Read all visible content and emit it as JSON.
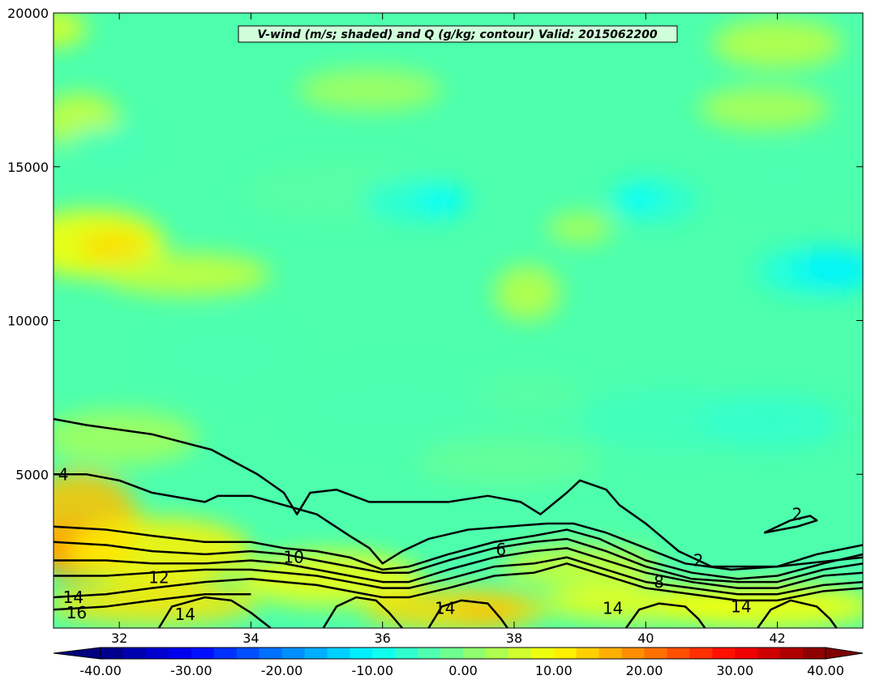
{
  "chart_data": {
    "type": "heatmap",
    "title": "V-wind (m/s; shaded) and Q (g/kg; contour) Valid: 2015062200",
    "xlim": [
      31.0,
      43.3
    ],
    "ylim": [
      0,
      20000
    ],
    "x_ticks": [
      32,
      34,
      36,
      38,
      40,
      42
    ],
    "x_tick_labels": [
      "32",
      "34",
      "36",
      "38",
      "40",
      "42"
    ],
    "y_ticks": [
      5000,
      10000,
      15000,
      20000
    ],
    "y_tick_labels": [
      "5000",
      "10000",
      "15000",
      "20000"
    ],
    "colorbar": {
      "min": -40,
      "max": 40,
      "step": 2.5,
      "extend": "both",
      "ticks": [
        -40,
        -30,
        -20,
        -10,
        0,
        10,
        20,
        30,
        40
      ],
      "tick_labels": [
        "-40.00",
        "-30.00",
        "-20.00",
        "-10.00",
        "0.00",
        "10.00",
        "20.00",
        "30.00",
        "40.00"
      ],
      "colormap": "jet"
    },
    "contours": [
      {
        "level": 2,
        "points": [
          [
            31.0,
            6800
          ],
          [
            31.5,
            6600
          ],
          [
            32.5,
            6300
          ],
          [
            33.4,
            5800
          ],
          [
            34.1,
            5000
          ],
          [
            34.5,
            4400
          ],
          [
            34.7,
            3700
          ],
          [
            34.9,
            4400
          ],
          [
            35.3,
            4500
          ],
          [
            35.8,
            4100
          ],
          [
            36.3,
            4100
          ],
          [
            37.0,
            4100
          ],
          [
            37.6,
            4300
          ],
          [
            38.1,
            4100
          ],
          [
            38.4,
            3700
          ],
          [
            38.8,
            4400
          ],
          [
            39.0,
            4800
          ],
          [
            39.4,
            4500
          ],
          [
            39.6,
            4000
          ],
          [
            40.0,
            3400
          ],
          [
            40.5,
            2500
          ],
          [
            41.0,
            2000
          ],
          [
            42.0,
            2000
          ],
          [
            43.3,
            2300
          ]
        ]
      },
      {
        "level": 2,
        "points": [
          [
            41.8,
            3100
          ],
          [
            42.2,
            3500
          ],
          [
            42.5,
            3650
          ],
          [
            42.6,
            3500
          ],
          [
            42.3,
            3300
          ],
          [
            41.8,
            3100
          ]
        ]
      },
      {
        "level": 4,
        "points": [
          [
            31.0,
            5000
          ],
          [
            31.5,
            5000
          ],
          [
            32.0,
            4800
          ],
          [
            32.5,
            4400
          ],
          [
            33.3,
            4100
          ],
          [
            33.5,
            4300
          ],
          [
            34.0,
            4300
          ],
          [
            34.5,
            4000
          ],
          [
            35.0,
            3700
          ],
          [
            35.5,
            3000
          ],
          [
            35.8,
            2600
          ],
          [
            36.0,
            2100
          ],
          [
            36.3,
            2500
          ],
          [
            36.7,
            2900
          ],
          [
            37.3,
            3200
          ],
          [
            37.9,
            3300
          ],
          [
            38.5,
            3400
          ],
          [
            38.9,
            3400
          ],
          [
            39.4,
            3100
          ],
          [
            40.0,
            2600
          ],
          [
            40.6,
            2100
          ],
          [
            41.3,
            1900
          ],
          [
            42.0,
            2000
          ],
          [
            42.6,
            2400
          ],
          [
            43.3,
            2700
          ]
        ]
      },
      {
        "level": 6,
        "points": [
          [
            31.0,
            3300
          ],
          [
            31.8,
            3200
          ],
          [
            32.5,
            3000
          ],
          [
            33.3,
            2800
          ],
          [
            34.0,
            2800
          ],
          [
            34.5,
            2600
          ],
          [
            35.0,
            2500
          ],
          [
            35.5,
            2300
          ],
          [
            36.0,
            1900
          ],
          [
            36.4,
            2000
          ],
          [
            37.0,
            2400
          ],
          [
            37.7,
            2800
          ],
          [
            38.3,
            3000
          ],
          [
            38.8,
            3200
          ],
          [
            39.3,
            2900
          ],
          [
            40.0,
            2200
          ],
          [
            40.7,
            1800
          ],
          [
            41.4,
            1600
          ],
          [
            42.0,
            1700
          ],
          [
            42.7,
            2100
          ],
          [
            43.3,
            2400
          ]
        ]
      },
      {
        "level": 8,
        "points": [
          [
            31.0,
            2800
          ],
          [
            31.8,
            2700
          ],
          [
            32.5,
            2500
          ],
          [
            33.3,
            2400
          ],
          [
            34.0,
            2500
          ],
          [
            34.5,
            2400
          ],
          [
            35.0,
            2200
          ],
          [
            35.5,
            2000
          ],
          [
            36.0,
            1800
          ],
          [
            36.4,
            1800
          ],
          [
            37.0,
            2200
          ],
          [
            37.7,
            2600
          ],
          [
            38.3,
            2800
          ],
          [
            38.8,
            2900
          ],
          [
            39.4,
            2500
          ],
          [
            40.0,
            2000
          ],
          [
            40.7,
            1600
          ],
          [
            41.4,
            1500
          ],
          [
            42.0,
            1500
          ],
          [
            42.7,
            1900
          ],
          [
            43.3,
            2100
          ]
        ]
      },
      {
        "level": 10,
        "points": [
          [
            31.0,
            2200
          ],
          [
            31.8,
            2200
          ],
          [
            32.5,
            2100
          ],
          [
            33.3,
            2100
          ],
          [
            34.0,
            2200
          ],
          [
            34.5,
            2100
          ],
          [
            35.0,
            1900
          ],
          [
            35.5,
            1700
          ],
          [
            36.0,
            1500
          ],
          [
            36.4,
            1500
          ],
          [
            37.0,
            1900
          ],
          [
            37.7,
            2300
          ],
          [
            38.3,
            2500
          ],
          [
            38.8,
            2600
          ],
          [
            39.4,
            2200
          ],
          [
            40.0,
            1800
          ],
          [
            40.7,
            1500
          ],
          [
            41.4,
            1300
          ],
          [
            42.0,
            1300
          ],
          [
            42.7,
            1700
          ],
          [
            43.3,
            1800
          ]
        ]
      },
      {
        "level": 12,
        "points": [
          [
            31.0,
            1700
          ],
          [
            31.8,
            1700
          ],
          [
            32.5,
            1800
          ],
          [
            33.3,
            1900
          ],
          [
            34.0,
            1900
          ],
          [
            34.5,
            1800
          ],
          [
            35.0,
            1700
          ],
          [
            35.5,
            1500
          ],
          [
            36.0,
            1300
          ],
          [
            36.4,
            1300
          ],
          [
            37.0,
            1600
          ],
          [
            37.7,
            2000
          ],
          [
            38.3,
            2100
          ],
          [
            38.8,
            2300
          ],
          [
            39.4,
            1900
          ],
          [
            40.0,
            1500
          ],
          [
            40.7,
            1300
          ],
          [
            41.4,
            1100
          ],
          [
            42.0,
            1100
          ],
          [
            42.7,
            1400
          ],
          [
            43.3,
            1500
          ]
        ]
      },
      {
        "level": 14,
        "points": [
          [
            31.0,
            1000
          ],
          [
            31.8,
            1100
          ],
          [
            32.5,
            1300
          ],
          [
            33.3,
            1500
          ],
          [
            34.0,
            1600
          ],
          [
            34.5,
            1500
          ],
          [
            35.0,
            1400
          ],
          [
            35.5,
            1200
          ],
          [
            36.0,
            1000
          ],
          [
            36.4,
            1000
          ],
          [
            37.0,
            1300
          ],
          [
            37.7,
            1700
          ],
          [
            38.3,
            1800
          ],
          [
            38.8,
            2100
          ],
          [
            39.4,
            1700
          ],
          [
            40.0,
            1300
          ],
          [
            40.7,
            1100
          ],
          [
            41.4,
            900
          ],
          [
            42.0,
            900
          ],
          [
            42.7,
            1200
          ],
          [
            43.3,
            1300
          ]
        ]
      },
      {
        "level": 14,
        "points": [
          [
            32.6,
            0
          ],
          [
            32.8,
            700
          ],
          [
            33.3,
            1000
          ],
          [
            33.7,
            900
          ],
          [
            34.0,
            500
          ],
          [
            34.3,
            0
          ]
        ]
      },
      {
        "level": 14,
        "points": [
          [
            35.1,
            0
          ],
          [
            35.3,
            700
          ],
          [
            35.6,
            1000
          ],
          [
            35.9,
            900
          ],
          [
            36.1,
            500
          ],
          [
            36.3,
            0
          ]
        ]
      },
      {
        "level": 14,
        "points": [
          [
            36.7,
            0
          ],
          [
            36.9,
            700
          ],
          [
            37.2,
            900
          ],
          [
            37.6,
            800
          ],
          [
            37.8,
            300
          ],
          [
            37.9,
            0
          ]
        ]
      },
      {
        "level": 14,
        "points": [
          [
            39.7,
            0
          ],
          [
            39.9,
            600
          ],
          [
            40.2,
            800
          ],
          [
            40.6,
            700
          ],
          [
            40.8,
            300
          ],
          [
            40.9,
            0
          ]
        ]
      },
      {
        "level": 14,
        "points": [
          [
            41.7,
            0
          ],
          [
            41.9,
            600
          ],
          [
            42.2,
            900
          ],
          [
            42.6,
            700
          ],
          [
            42.8,
            300
          ],
          [
            42.9,
            0
          ]
        ]
      },
      {
        "level": 16,
        "points": [
          [
            31.0,
            600
          ],
          [
            31.8,
            700
          ],
          [
            32.5,
            900
          ],
          [
            33.3,
            1100
          ],
          [
            34.0,
            1100
          ]
        ]
      }
    ],
    "contour_labels": [
      {
        "text": "2",
        "x": 42.3,
        "y": 3700
      },
      {
        "text": "2",
        "x": 40.8,
        "y": 2200
      },
      {
        "text": "4",
        "x": 31.15,
        "y": 5000
      },
      {
        "text": "6",
        "x": 37.8,
        "y": 2550
      },
      {
        "text": "8",
        "x": 40.2,
        "y": 1500
      },
      {
        "text": "10",
        "x": 34.65,
        "y": 2300
      },
      {
        "text": "12",
        "x": 32.6,
        "y": 1650
      },
      {
        "text": "14",
        "x": 31.3,
        "y": 1000
      },
      {
        "text": "16",
        "x": 31.35,
        "y": 500
      },
      {
        "text": "14",
        "x": 33.0,
        "y": 450
      },
      {
        "text": "14",
        "x": 36.95,
        "y": 650
      },
      {
        "text": "14",
        "x": 39.5,
        "y": 650
      },
      {
        "text": "14",
        "x": 41.45,
        "y": 700
      }
    ],
    "vwind_regions": [
      {
        "x": 31.0,
        "y": 19500,
        "rx": 0.5,
        "ry": 600,
        "v": 8
      },
      {
        "x": 31.4,
        "y": 16500,
        "rx": 0.6,
        "ry": 900,
        "v": 6
      },
      {
        "x": 31.6,
        "y": 12500,
        "rx": 1.1,
        "ry": 1100,
        "v": 10
      },
      {
        "x": 31.9,
        "y": 12400,
        "rx": 0.5,
        "ry": 500,
        "v": 13
      },
      {
        "x": 31.8,
        "y": 15800,
        "rx": 0.6,
        "ry": 500,
        "v": -5
      },
      {
        "x": 33.0,
        "y": 11500,
        "rx": 1.3,
        "ry": 700,
        "v": 6
      },
      {
        "x": 33.6,
        "y": 8800,
        "rx": 1.0,
        "ry": 1200,
        "v": -4
      },
      {
        "x": 35.4,
        "y": 14200,
        "rx": 1.5,
        "ry": 1000,
        "v": -3
      },
      {
        "x": 36.5,
        "y": 13900,
        "rx": 0.8,
        "ry": 700,
        "v": -7
      },
      {
        "x": 36.9,
        "y": 13900,
        "rx": 0.4,
        "ry": 450,
        "v": -10
      },
      {
        "x": 38.2,
        "y": 10900,
        "rx": 0.5,
        "ry": 900,
        "v": 5
      },
      {
        "x": 39.0,
        "y": 13000,
        "rx": 0.5,
        "ry": 500,
        "v": 4
      },
      {
        "x": 40.1,
        "y": 13900,
        "rx": 0.7,
        "ry": 700,
        "v": -7
      },
      {
        "x": 39.9,
        "y": 14000,
        "rx": 0.3,
        "ry": 450,
        "v": -10
      },
      {
        "x": 42.1,
        "y": 14700,
        "rx": 0.8,
        "ry": 700,
        "v": -4
      },
      {
        "x": 42.6,
        "y": 11600,
        "rx": 0.9,
        "ry": 800,
        "v": -8
      },
      {
        "x": 42.9,
        "y": 11700,
        "rx": 0.6,
        "ry": 600,
        "v": -11
      },
      {
        "x": 41.8,
        "y": 16900,
        "rx": 1.0,
        "ry": 700,
        "v": 4
      },
      {
        "x": 42.0,
        "y": 19000,
        "rx": 1.0,
        "ry": 800,
        "v": 5
      },
      {
        "x": 35.8,
        "y": 17500,
        "rx": 1.1,
        "ry": 700,
        "v": 3
      },
      {
        "x": 36.2,
        "y": 7200,
        "rx": 1.5,
        "ry": 1100,
        "v": -4
      },
      {
        "x": 40.4,
        "y": 6800,
        "rx": 1.4,
        "ry": 1000,
        "v": -5
      },
      {
        "x": 41.9,
        "y": 6700,
        "rx": 1.1,
        "ry": 900,
        "v": -6
      },
      {
        "x": 38.2,
        "y": 7600,
        "rx": 0.8,
        "ry": 700,
        "v": -3
      },
      {
        "x": 37.9,
        "y": 5400,
        "rx": 1.4,
        "ry": 800,
        "v": -2
      },
      {
        "x": 32.0,
        "y": 6200,
        "rx": 1.2,
        "ry": 900,
        "v": 3
      },
      {
        "x": 31.4,
        "y": 3500,
        "rx": 0.9,
        "ry": 1600,
        "v": 15
      },
      {
        "x": 31.4,
        "y": 2500,
        "rx": 0.7,
        "ry": 900,
        "v": 18
      },
      {
        "x": 32.6,
        "y": 2500,
        "rx": 1.4,
        "ry": 1100,
        "v": 11
      },
      {
        "x": 32.5,
        "y": 800,
        "rx": 1.6,
        "ry": 700,
        "v": 12
      },
      {
        "x": 35.2,
        "y": 1600,
        "rx": 1.4,
        "ry": 900,
        "v": 9
      },
      {
        "x": 37.1,
        "y": 600,
        "rx": 1.4,
        "ry": 700,
        "v": 13
      },
      {
        "x": 37.6,
        "y": 550,
        "rx": 0.5,
        "ry": 400,
        "v": 15
      },
      {
        "x": 39.9,
        "y": 800,
        "rx": 1.5,
        "ry": 600,
        "v": 9
      },
      {
        "x": 41.9,
        "y": 700,
        "rx": 1.6,
        "ry": 700,
        "v": 10
      },
      {
        "x": 39.0,
        "y": 2000,
        "rx": 1.2,
        "ry": 700,
        "v": 6
      }
    ]
  }
}
